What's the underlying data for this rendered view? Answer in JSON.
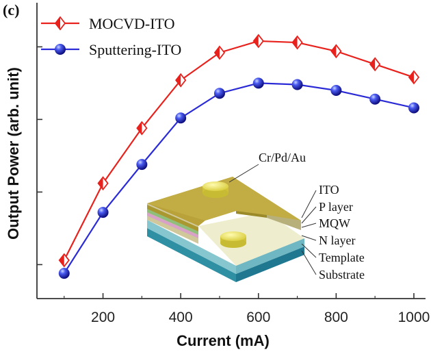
{
  "panel_label": "(c)",
  "chart_data": {
    "type": "line",
    "xlabel": "Current (mA)",
    "ylabel": "Output Power (arb. unit)",
    "x": [
      100,
      200,
      300,
      400,
      500,
      600,
      700,
      800,
      900,
      1000
    ],
    "xlim": [
      30,
      1030
    ],
    "xticks": [
      200,
      400,
      600,
      800,
      1000
    ],
    "ylim": [
      0,
      100
    ],
    "ytick_labels_shown": false,
    "grid": false,
    "legend_position": "top-left",
    "series": [
      {
        "name": "MOCVD-ITO",
        "marker": "half-filled-diamond",
        "color": "#e8211c",
        "values": [
          16.5,
          43.0,
          62.0,
          78.5,
          88.0,
          92.0,
          91.5,
          88.5,
          84.0,
          79.5
        ]
      },
      {
        "name": "Sputtering-ITO",
        "marker": "sphere",
        "color": "#2a2ad6",
        "values": [
          12.0,
          33.0,
          49.5,
          65.5,
          74.0,
          77.5,
          77.0,
          75.0,
          72.0,
          69.0
        ]
      }
    ]
  },
  "inset": {
    "labels": [
      "Cr/Pd/Au",
      "ITO",
      "P layer",
      "MQW",
      "N layer",
      "Template",
      "Substrate"
    ]
  }
}
